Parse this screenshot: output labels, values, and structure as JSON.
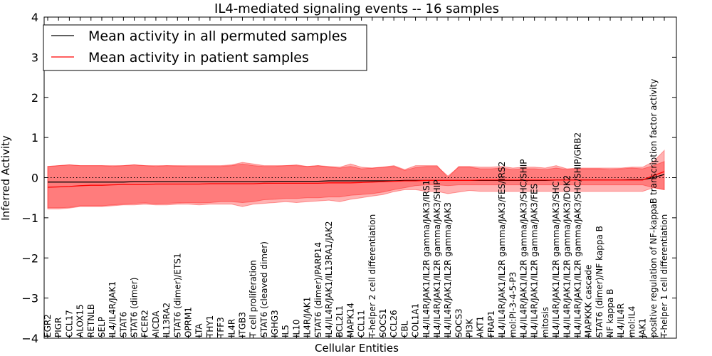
{
  "chart_data": {
    "type": "line",
    "title": "IL4-mediated signaling events -- 16 samples",
    "xlabel": "Cellular Entities",
    "ylabel": "Inferred Activity",
    "ylim": [
      -4,
      4
    ],
    "yticks": [
      "−4",
      "−3",
      "−2",
      "−1",
      "0",
      "1",
      "2",
      "3",
      "4"
    ],
    "grid": false,
    "legend_position": "top-left",
    "categories": [
      "EGR2",
      "PIGR",
      "CCL17",
      "ALOX15",
      "RETNLB",
      "SELP",
      "IL4/IL4R/JAK1",
      "STAT6",
      "STAT6 (dimer)",
      "FCER2",
      "AICDA",
      "IL13RA2",
      "STAT6 (dimer)/ETS1",
      "OPRM1",
      "LTA",
      "THY1",
      "TFF3",
      "IL4R",
      "ITGB3",
      "T cell proliferation",
      "STAT6 (cleaved dimer)",
      "IGHG3",
      "IL5",
      "IL10",
      "IL4R/JAK1",
      "STAT6 (dimer)/PARP14",
      "IL4/IL4R/JAK1/IL13RA1/JAK2",
      "BCL2L1",
      "MAPK14",
      "CCL11",
      "T-helper 2 cell differentiation",
      "SOCS1",
      "CCL26",
      "CBL",
      "COL1A1",
      "IL4/IL4R/JAK1/IL2R gamma/JAK3/IRS1",
      "IL4/IL4R/JAK1/IL2R gamma/JAK3/SHIP",
      "IL4/IL4R/JAK1/IL2R gamma/JAK3",
      "SOCS3",
      "PI3K",
      "AKT1",
      "FRAP1",
      "IL4/IL4R/JAK1/IL2R gamma/JAK3/FES/IRS2",
      "mol:PI-3-4-5-P3",
      "IL4/IL4R/JAK1/IL2R gamma/JAK3/SHC/SHIP",
      "IL4/IL4R/JAK1/IL2R gamma/JAK3/FES",
      "mitosis",
      "IL4/IL4R/JAK1/IL2R gamma/JAK3/SHC",
      "IL4/IL4R/JAK1/IL2R gamma/JAK3/DOK2",
      "IL4/IL4R/JAK1/IL2R gamma/JAK3/SHC/SHIP/GRB2",
      "MAPKKK cascade",
      "STAT6 (dimer)/NF kappa B",
      "NF kappa B",
      "IL4/IL4R",
      "mol:IL4",
      "JAK1",
      "positive regulation of NF-kappaB transcription factor activity",
      "T-helper 1 cell differentiation"
    ],
    "series": [
      {
        "name": "Mean activity in all permuted samples",
        "color": "#000000",
        "values": [
          -0.11,
          -0.11,
          -0.11,
          -0.11,
          -0.11,
          -0.11,
          -0.11,
          -0.11,
          -0.1,
          -0.1,
          -0.1,
          -0.1,
          -0.1,
          -0.1,
          -0.1,
          -0.1,
          -0.1,
          -0.1,
          -0.1,
          -0.1,
          -0.1,
          -0.09,
          -0.09,
          -0.09,
          -0.09,
          -0.09,
          -0.08,
          -0.08,
          -0.08,
          -0.08,
          -0.08,
          -0.08,
          -0.08,
          -0.07,
          -0.07,
          -0.07,
          -0.07,
          -0.07,
          -0.07,
          -0.07,
          -0.07,
          -0.07,
          -0.07,
          -0.07,
          -0.07,
          -0.07,
          -0.07,
          -0.06,
          -0.06,
          -0.06,
          -0.06,
          -0.06,
          -0.06,
          -0.06,
          -0.05,
          -0.05,
          0.0,
          0.08
        ],
        "lower": [
          -0.75,
          -0.75,
          -0.74,
          -0.7,
          -0.7,
          -0.7,
          -0.68,
          -0.66,
          -0.64,
          -0.63,
          -0.65,
          -0.64,
          -0.63,
          -0.62,
          -0.63,
          -0.62,
          -0.6,
          -0.6,
          -0.62,
          -0.6,
          -0.55,
          -0.54,
          -0.52,
          -0.52,
          -0.5,
          -0.5,
          -0.48,
          -0.48,
          -0.44,
          -0.42,
          -0.4,
          -0.36,
          -0.3,
          -0.25,
          -0.2,
          -0.18,
          -0.18,
          -0.2,
          -0.18,
          -0.18,
          -0.18,
          -0.18,
          -0.18,
          -0.18,
          -0.18,
          -0.18,
          -0.18,
          -0.18,
          -0.18,
          -0.18,
          -0.18,
          -0.18,
          -0.18,
          -0.18,
          -0.18,
          -0.18,
          -0.25,
          -0.3
        ],
        "upper": [
          0.28,
          0.3,
          0.32,
          0.3,
          0.3,
          0.3,
          0.28,
          0.3,
          0.32,
          0.3,
          0.28,
          0.3,
          0.29,
          0.28,
          0.28,
          0.28,
          0.28,
          0.3,
          0.34,
          0.3,
          0.28,
          0.28,
          0.3,
          0.3,
          0.28,
          0.3,
          0.26,
          0.24,
          0.28,
          0.22,
          0.24,
          0.26,
          0.28,
          0.18,
          0.25,
          0.28,
          0.28,
          0.04,
          0.26,
          0.26,
          0.22,
          0.22,
          0.24,
          0.2,
          0.22,
          0.22,
          0.2,
          0.24,
          0.2,
          0.22,
          0.22,
          0.22,
          0.2,
          0.22,
          0.24,
          0.22,
          0.3,
          0.4
        ]
      },
      {
        "name": "Mean activity in patient samples",
        "color": "#ff0000",
        "values": [
          -0.24,
          -0.23,
          -0.22,
          -0.2,
          -0.19,
          -0.19,
          -0.18,
          -0.17,
          -0.17,
          -0.17,
          -0.16,
          -0.16,
          -0.16,
          -0.16,
          -0.16,
          -0.15,
          -0.15,
          -0.15,
          -0.15,
          -0.15,
          -0.14,
          -0.14,
          -0.14,
          -0.14,
          -0.14,
          -0.14,
          -0.13,
          -0.13,
          -0.13,
          -0.12,
          -0.11,
          -0.1,
          -0.09,
          -0.08,
          -0.08,
          -0.07,
          -0.07,
          -0.07,
          -0.07,
          -0.07,
          -0.06,
          -0.06,
          -0.06,
          -0.06,
          -0.06,
          -0.06,
          -0.06,
          -0.06,
          -0.06,
          -0.06,
          -0.06,
          -0.06,
          -0.06,
          -0.06,
          -0.06,
          -0.06,
          0.05,
          0.15
        ],
        "lower": [
          -0.78,
          -0.78,
          -0.76,
          -0.72,
          -0.72,
          -0.72,
          -0.7,
          -0.68,
          -0.68,
          -0.66,
          -0.68,
          -0.68,
          -0.66,
          -0.66,
          -0.68,
          -0.66,
          -0.66,
          -0.66,
          -0.72,
          -0.66,
          -0.64,
          -0.62,
          -0.6,
          -0.62,
          -0.6,
          -0.58,
          -0.56,
          -0.6,
          -0.54,
          -0.5,
          -0.46,
          -0.42,
          -0.35,
          -0.3,
          -0.3,
          -0.34,
          -0.34,
          -0.4,
          -0.36,
          -0.32,
          -0.34,
          -0.34,
          -0.34,
          -0.34,
          -0.34,
          -0.34,
          -0.34,
          -0.34,
          -0.34,
          -0.34,
          -0.34,
          -0.34,
          -0.34,
          -0.34,
          -0.34,
          -0.34,
          -0.25,
          -0.3
        ],
        "upper": [
          0.28,
          0.3,
          0.32,
          0.3,
          0.3,
          0.3,
          0.3,
          0.3,
          0.32,
          0.3,
          0.3,
          0.3,
          0.3,
          0.3,
          0.3,
          0.3,
          0.3,
          0.32,
          0.38,
          0.34,
          0.3,
          0.3,
          0.3,
          0.32,
          0.28,
          0.3,
          0.28,
          0.26,
          0.34,
          0.26,
          0.24,
          0.26,
          0.3,
          0.2,
          0.3,
          0.3,
          0.3,
          0.0,
          0.28,
          0.28,
          0.26,
          0.26,
          0.28,
          0.24,
          0.26,
          0.26,
          0.24,
          0.3,
          0.22,
          0.24,
          0.24,
          0.24,
          0.24,
          0.24,
          0.26,
          0.26,
          0.4,
          0.68
        ]
      }
    ],
    "band_color": "#ff0000",
    "zero_line_style": "dotted"
  }
}
